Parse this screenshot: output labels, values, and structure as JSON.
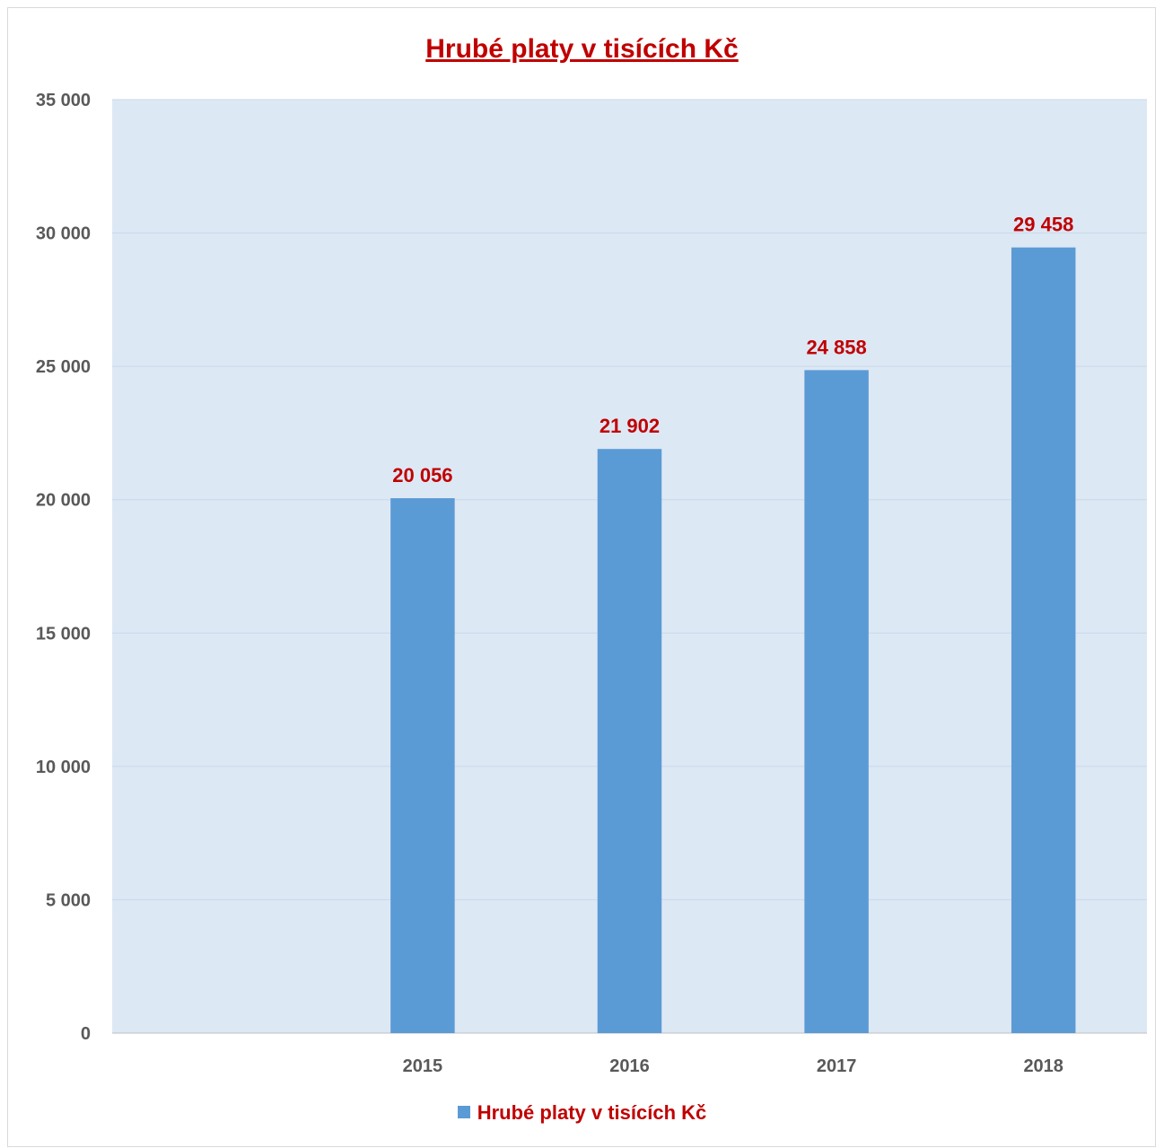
{
  "chart_data": {
    "type": "bar",
    "title": "Hrubé platy v tisících Kč",
    "categories": [
      "",
      "2015",
      "2016",
      "2017",
      "2018"
    ],
    "series": [
      {
        "name": "Hrubé platy v tisících Kč",
        "values": [
          null,
          20056,
          21902,
          24858,
          29458
        ],
        "data_labels": [
          "",
          "20 056",
          "21 902",
          "24 858",
          "29 458"
        ],
        "color": "#5b9bd5"
      }
    ],
    "y_ticks": [
      0,
      5000,
      10000,
      15000,
      20000,
      25000,
      30000,
      35000
    ],
    "y_tick_labels": [
      "0",
      "5 000",
      "10 000",
      "15 000",
      "20 000",
      "25 000",
      "30 000",
      "35 000"
    ],
    "ylim": [
      0,
      35000
    ],
    "grid": true,
    "legend_position": "bottom",
    "colors": {
      "plot_background": "#dde8f5",
      "gridline": "#c9d8ea",
      "bar": "#5b9bd5",
      "title": "#c00000",
      "data_label": "#c00000",
      "tick_label": "#595959"
    }
  }
}
